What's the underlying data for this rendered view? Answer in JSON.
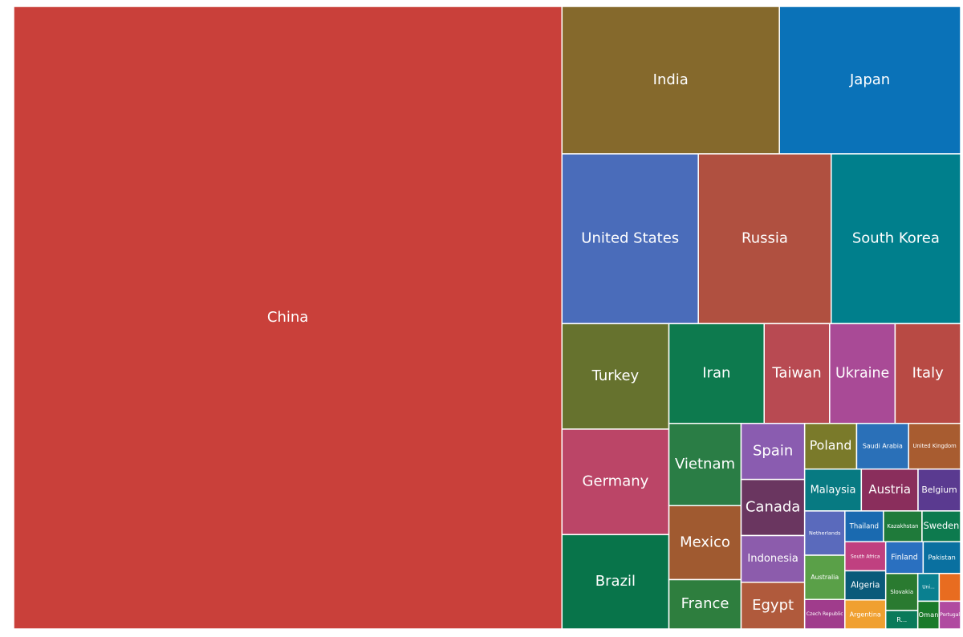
{
  "chart_data": {
    "type": "treemap",
    "categories": [
      "China",
      "India",
      "Japan",
      "United States",
      "Russia",
      "South Korea",
      "Turkey",
      "Germany",
      "Brazil",
      "Iran",
      "Taiwan",
      "Ukraine",
      "Italy",
      "Vietnam",
      "Mexico",
      "France",
      "Spain",
      "Canada",
      "Indonesia",
      "Egypt",
      "Poland",
      "Saudi Arabia",
      "United Kingdom",
      "Malaysia",
      "Austria",
      "Belgium",
      "Netherlands",
      "Australia",
      "Czech Republic",
      "Thailand",
      "Kazakhstan",
      "Sweden",
      "South Africa",
      "Algeria",
      "Argentina",
      "Finland",
      "Pakistan",
      "Slovakia",
      "R...",
      "Uni...",
      null,
      "Oman",
      "Portugal"
    ],
    "values": [
      57.5,
      5.4,
      4.5,
      3.9,
      3.8,
      3.7,
      1.9,
      1.9,
      1.7,
      1.6,
      1.1,
      1.1,
      1.1,
      1.0,
      0.9,
      0.6,
      0.6,
      0.6,
      0.5,
      0.5,
      0.4,
      0.4,
      0.4,
      0.4,
      0.4,
      0.3,
      0.3,
      0.3,
      0.2,
      0.2,
      0.2,
      0.2,
      0.2,
      0.2,
      0.2,
      0.2,
      0.2,
      0.2,
      0.1,
      0.1,
      0.1,
      0.1,
      0.1
    ],
    "colors": [
      "#c9403a",
      "#85692c",
      "#0a72b8",
      "#4a6cba",
      "#b05040",
      "#007f8c",
      "#66722e",
      "#bb4567",
      "#08744a",
      "#0d7a4e",
      "#b84a52",
      "#a94a96",
      "#b84a44",
      "#2a7d45",
      "#a05a30",
      "#2e7e3e",
      "#8a5cb0",
      "#6a3660",
      "#8c5cac",
      "#b05a3c",
      "#7a7a2a",
      "#2a70b8",
      "#a85c30",
      "#077a82",
      "#8a2e5c",
      "#5a3a90",
      "#5a6abc",
      "#5aa048",
      "#a03c8c",
      "#1a6ab0",
      "#1f7a3a",
      "#0d7a4e",
      "#c04080",
      "#0a5a7a",
      "#f0a030",
      "#2a70c0",
      "#0a70a0",
      "#2a7a30",
      "#0a7a5a",
      "#0a8090",
      "#e86c20",
      "#1a7a2a",
      "#b04aa0"
    ]
  }
}
